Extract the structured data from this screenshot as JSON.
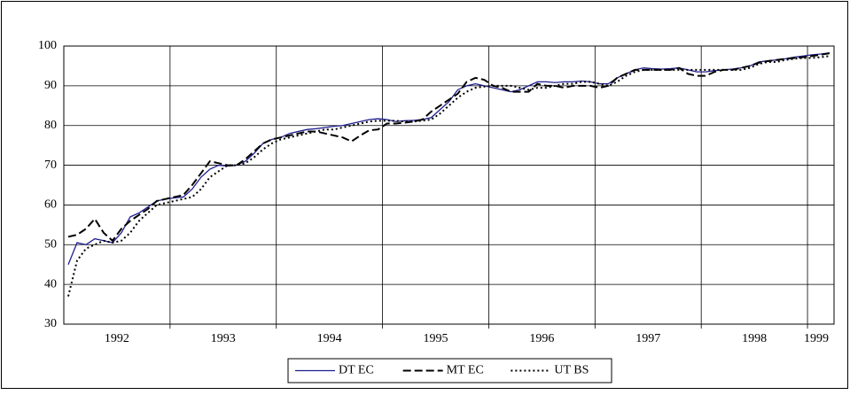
{
  "chart_data": {
    "type": "line",
    "categories": [
      null,
      null,
      null,
      null,
      null,
      null,
      "1992",
      null,
      null,
      null,
      null,
      null,
      null,
      null,
      null,
      null,
      null,
      null,
      "1993",
      null,
      null,
      null,
      null,
      null,
      null,
      null,
      null,
      null,
      null,
      null,
      "1994",
      null,
      null,
      null,
      null,
      null,
      null,
      null,
      null,
      null,
      null,
      null,
      "1995",
      null,
      null,
      null,
      null,
      null,
      null,
      null,
      null,
      null,
      null,
      null,
      "1996",
      null,
      null,
      null,
      null,
      null,
      null,
      null,
      null,
      null,
      null,
      null,
      "1997",
      null,
      null,
      null,
      null,
      null,
      null,
      null,
      null,
      null,
      null,
      null,
      "1998",
      null,
      null,
      null,
      null,
      null,
      null,
      "1999",
      null
    ],
    "series": [
      {
        "name": "DT EC",
        "color": "#1f1f8f",
        "dash": "solid",
        "values": [
          45,
          50.5,
          50,
          51.5,
          51,
          50.5,
          53,
          57,
          58,
          59.5,
          61,
          61.5,
          61.8,
          62,
          64,
          67,
          69,
          70,
          69.8,
          70,
          71,
          73,
          75.5,
          76.5,
          77,
          78,
          78.5,
          79,
          79.2,
          79.5,
          79.8,
          80,
          80.5,
          81,
          81.5,
          81.7,
          81.5,
          81,
          81.2,
          81.3,
          81.5,
          82,
          84,
          86,
          89,
          90,
          90.5,
          90,
          89.5,
          89,
          88.5,
          89,
          90,
          91,
          91,
          90.8,
          91,
          91,
          91.2,
          91,
          90.5,
          90.5,
          92,
          93,
          94,
          94.5,
          94.3,
          94.2,
          94.3,
          94.5,
          94,
          93.5,
          93.5,
          93.8,
          94,
          94.2,
          94.5,
          95,
          96,
          96.3,
          96.5,
          96.8,
          97.2,
          97.5,
          97.8,
          98,
          98.3
        ]
      },
      {
        "name": "MT EC",
        "color": "#000000",
        "dash": "dashed",
        "values": [
          52,
          52.5,
          54,
          56.5,
          53,
          51,
          54,
          56,
          57.5,
          59,
          61,
          61.5,
          62,
          62.5,
          65,
          68,
          71,
          70.5,
          70,
          70,
          71.5,
          73.5,
          75.5,
          76.5,
          77,
          77.5,
          78,
          78.5,
          78.5,
          78,
          77.5,
          77,
          76,
          77.5,
          78.8,
          79,
          80.5,
          80.5,
          80.7,
          81,
          81.5,
          83.5,
          85,
          86.5,
          88,
          91,
          92,
          91.5,
          90,
          89.5,
          88.5,
          88.5,
          88.5,
          90.5,
          90,
          90,
          89.5,
          90,
          90,
          90,
          89.5,
          90,
          92,
          93,
          94,
          94,
          94,
          94,
          94,
          94.5,
          93,
          92.5,
          92.5,
          93.5,
          94,
          94,
          94.5,
          95,
          95.8,
          96.2,
          96.5,
          96.8,
          97,
          97.2,
          97.5,
          97.8,
          98.2
        ]
      },
      {
        "name": "UT BS",
        "color": "#000000",
        "dash": "dotted",
        "values": [
          37,
          46,
          49,
          50,
          51,
          50.5,
          51,
          53,
          56,
          58,
          60,
          60.5,
          61,
          61.5,
          62,
          64,
          67,
          68.5,
          70,
          70,
          70.5,
          72,
          74,
          75.5,
          76.5,
          77,
          77.5,
          78,
          78.5,
          79,
          79,
          79.5,
          80,
          80.5,
          81,
          81.2,
          81.2,
          81.2,
          81,
          81,
          81.2,
          81.5,
          83,
          85,
          87,
          88.5,
          89.5,
          89.8,
          90,
          90,
          90,
          89.5,
          89,
          89.5,
          89.5,
          90,
          90.5,
          90.5,
          91,
          91,
          90.5,
          90,
          91,
          92.5,
          93.5,
          94,
          94,
          94,
          94,
          94,
          94,
          94,
          94,
          94,
          94,
          94,
          94,
          94.5,
          95.5,
          96,
          96,
          96.5,
          96.8,
          97,
          97,
          97.2,
          97.5
        ]
      }
    ],
    "ylim": [
      30,
      100
    ],
    "yticks": [
      30,
      40,
      50,
      60,
      70,
      80,
      90,
      100
    ],
    "grid": true,
    "legend": "bottom"
  }
}
